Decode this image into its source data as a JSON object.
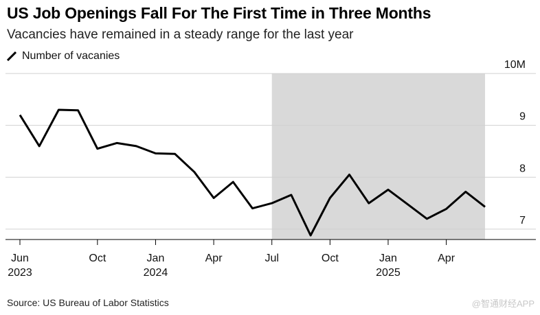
{
  "title": "US Job Openings Fall For The First Time in Three Months",
  "subtitle": "Vacancies have remained in a steady range for the last year",
  "source": "Source: US Bureau of Labor Statistics",
  "watermark": "@智通财经APP",
  "colors": {
    "line": "#000000",
    "shade": "#d9d9d9",
    "grid": "#d0d0d0"
  },
  "chart_data": {
    "type": "line",
    "title": "US Job Openings Fall For The First Time in Three Months",
    "subtitle": "Vacancies have remained in a steady range for the last year",
    "ylabel": "",
    "xlabel": "",
    "ylim": [
      6.8,
      10.0
    ],
    "y_ticks": [
      {
        "value": 7,
        "label": "7"
      },
      {
        "value": 8,
        "label": "8"
      },
      {
        "value": 9,
        "label": "9"
      },
      {
        "value": 10,
        "label": "10M"
      }
    ],
    "x_ticks": [
      {
        "index": 0,
        "label": "Jun",
        "year": "2023"
      },
      {
        "index": 4,
        "label": "Oct",
        "year": ""
      },
      {
        "index": 7,
        "label": "Jan",
        "year": "2024"
      },
      {
        "index": 10,
        "label": "Apr",
        "year": ""
      },
      {
        "index": 13,
        "label": "Jul",
        "year": ""
      },
      {
        "index": 16,
        "label": "Oct",
        "year": ""
      },
      {
        "index": 19,
        "label": "Jan",
        "year": "2025"
      },
      {
        "index": 22,
        "label": "Apr",
        "year": ""
      }
    ],
    "shaded_range": [
      13,
      25
    ],
    "grid": true,
    "legend": "top-left",
    "series": [
      {
        "name": "Number of vacanies",
        "x": [
          "2023-06",
          "2023-07",
          "2023-08",
          "2023-09",
          "2023-10",
          "2023-11",
          "2023-12",
          "2024-01",
          "2024-02",
          "2024-03",
          "2024-04",
          "2024-05",
          "2024-06",
          "2024-07",
          "2024-08",
          "2024-09",
          "2024-10",
          "2024-11",
          "2024-12",
          "2025-01",
          "2025-02",
          "2025-03",
          "2025-04",
          "2025-05",
          "2025-06"
        ],
        "values": [
          9.2,
          8.6,
          9.3,
          9.29,
          8.55,
          8.66,
          8.6,
          8.46,
          8.45,
          8.1,
          7.6,
          7.91,
          7.4,
          7.5,
          7.66,
          6.88,
          7.6,
          8.05,
          7.5,
          7.76,
          7.48,
          7.2,
          7.39,
          7.72,
          7.43
        ]
      }
    ]
  }
}
